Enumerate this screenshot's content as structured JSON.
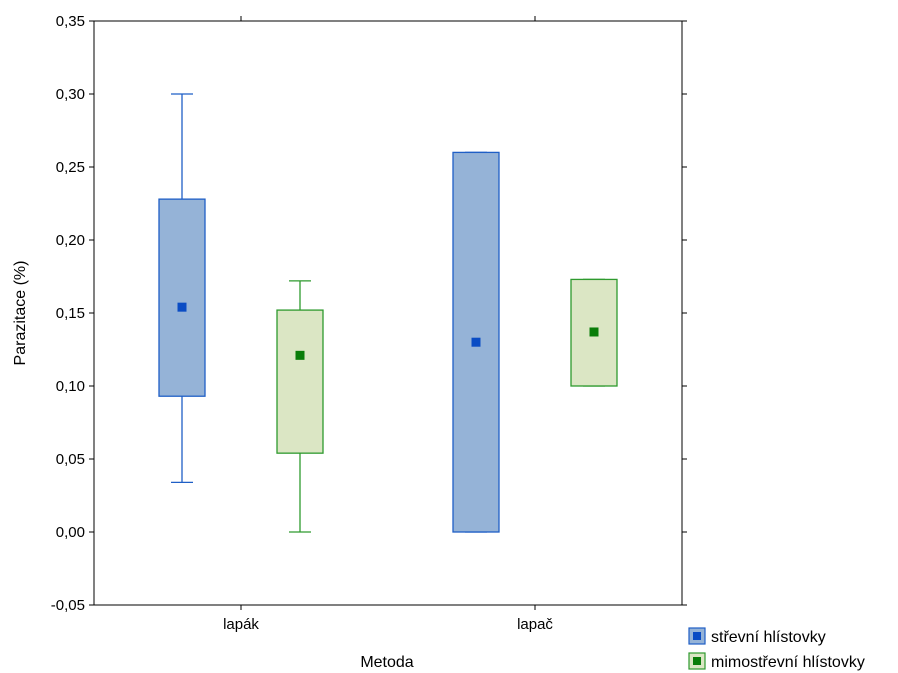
{
  "chart_data": {
    "type": "boxplot",
    "xlabel": "Metoda",
    "ylabel": "Parazitace (%)",
    "ylim": [
      -0.05,
      0.35
    ],
    "yticks": [
      -0.05,
      0.0,
      0.05,
      0.1,
      0.15,
      0.2,
      0.25,
      0.3,
      0.35
    ],
    "ytick_labels": [
      "-0,05",
      "0,00",
      "0,05",
      "0,10",
      "0,15",
      "0,20",
      "0,25",
      "0,30",
      "0,35"
    ],
    "categories": [
      "lapák",
      "lapač"
    ],
    "grid": false,
    "legend_position": "bottom-right",
    "series": [
      {
        "name": "střevní hlístovky",
        "fill": "#95b3d7",
        "stroke": "#1f5fc6",
        "marker": "#0a4cc4",
        "boxes": [
          {
            "category": "lapák",
            "whisker_low": 0.034,
            "q1": 0.093,
            "median": 0.154,
            "q3": 0.228,
            "whisker_high": 0.3
          },
          {
            "category": "lapač",
            "whisker_low": 0.0,
            "q1": 0.0,
            "median": 0.13,
            "q3": 0.26,
            "whisker_high": 0.26
          }
        ]
      },
      {
        "name": "mimostřevní hlístovky",
        "fill": "#dbe6c4",
        "stroke": "#2e9a2e",
        "marker": "#0a7d0a",
        "boxes": [
          {
            "category": "lapák",
            "whisker_low": 0.0,
            "q1": 0.054,
            "median": 0.121,
            "q3": 0.152,
            "whisker_high": 0.172
          },
          {
            "category": "lapač",
            "whisker_low": 0.1,
            "q1": 0.1,
            "median": 0.137,
            "q3": 0.173,
            "whisker_high": 0.173
          }
        ]
      }
    ]
  }
}
